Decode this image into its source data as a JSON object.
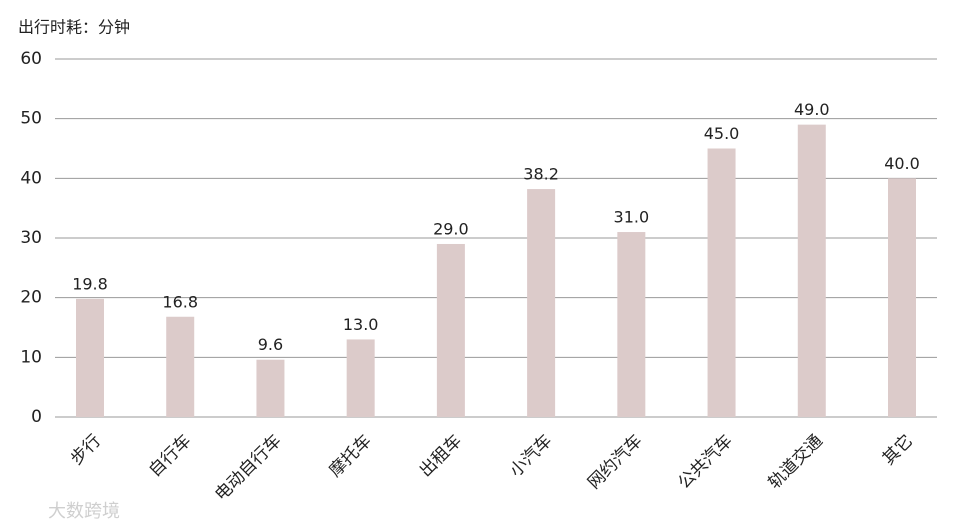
{
  "chart_data": {
    "type": "bar",
    "y_label": "出行时耗：分钟",
    "categories": [
      "步行",
      "自行车",
      "电动自行车",
      "摩托车",
      "出租车",
      "小汽车",
      "网约汽车",
      "公共汽车",
      "轨道交通",
      "其它"
    ],
    "values": [
      19.8,
      16.8,
      9.6,
      13.0,
      29.0,
      38.2,
      31.0,
      45.0,
      49.0,
      40.0
    ],
    "value_labels": [
      "19.8",
      "16.8",
      "9.6",
      "13.0",
      "29.0",
      "38.2",
      "31.0",
      "45.0",
      "49.0",
      "40.0"
    ],
    "color": "#dccbca",
    "ylim": [
      0,
      60
    ],
    "yticks": [
      0,
      10,
      20,
      30,
      40,
      50,
      60
    ],
    "grid": true
  },
  "watermark": "大数跨境"
}
